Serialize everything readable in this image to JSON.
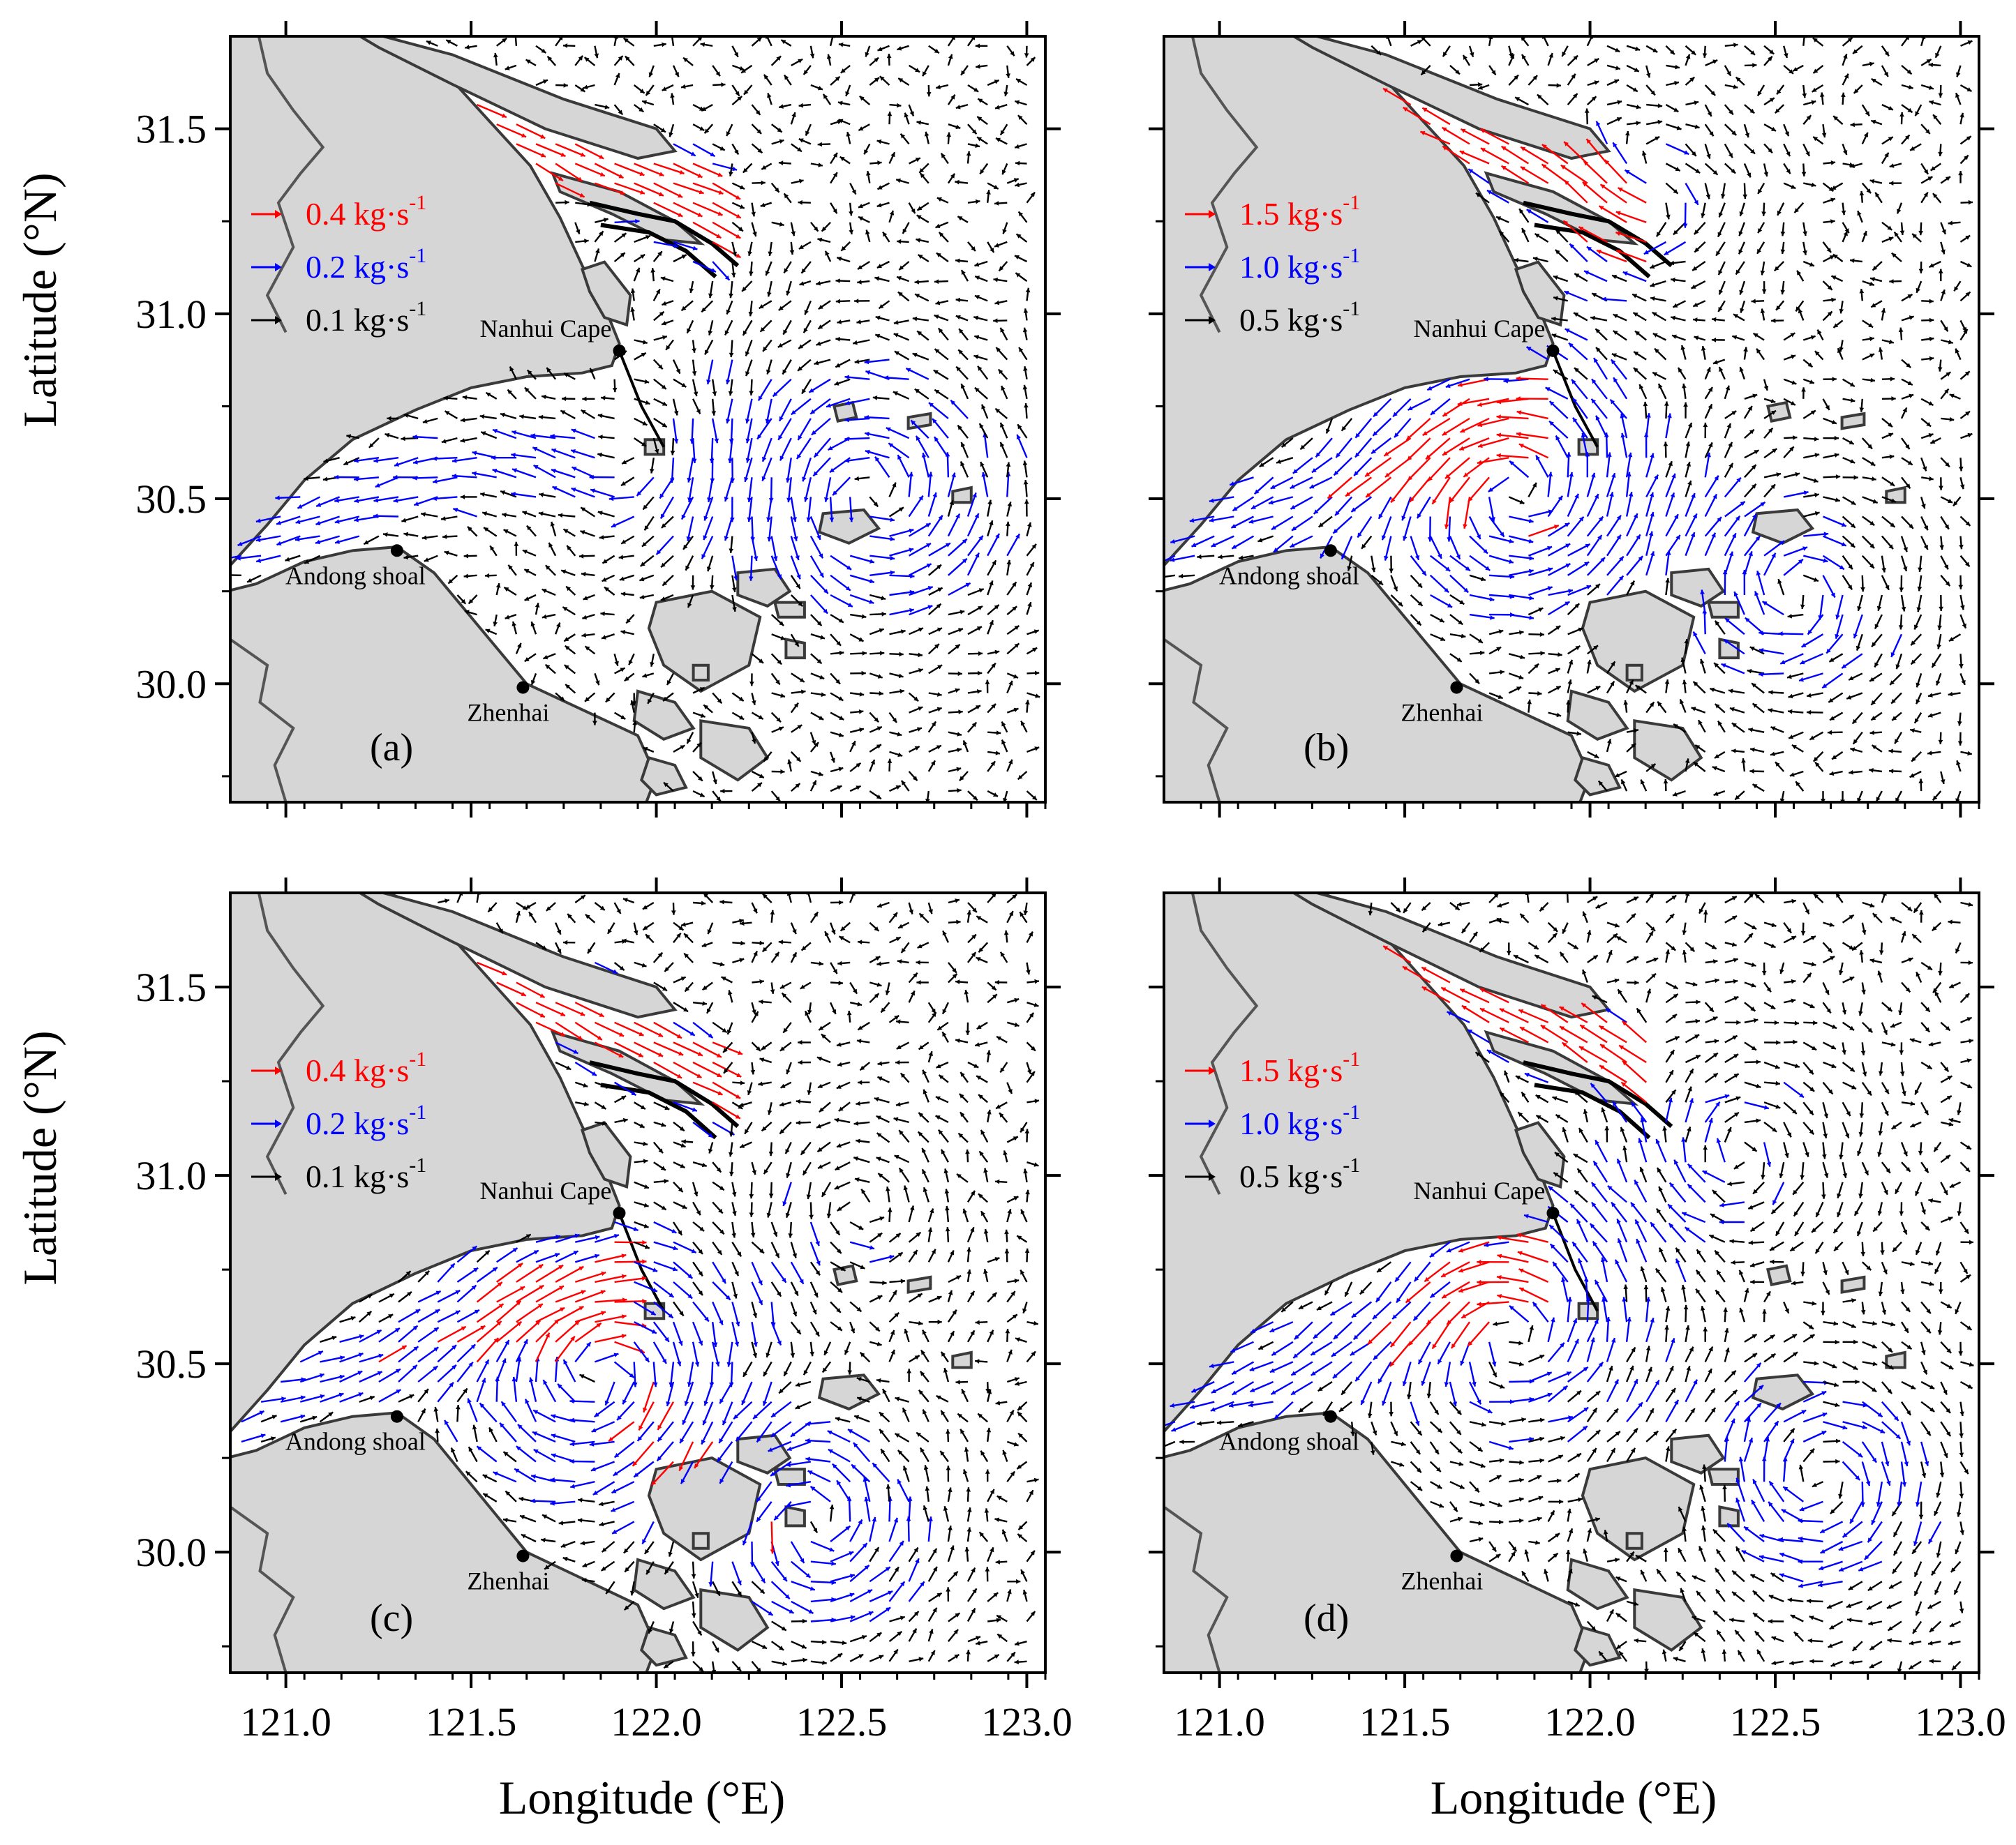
{
  "figure": {
    "x_axis_title": "Longitude (°E)",
    "y_axis_title": "Latitude (°N)",
    "x_ticks": [
      "121.0",
      "121.5",
      "122.0",
      "122.5",
      "123.0"
    ],
    "y_ticks": [
      "31.5",
      "31.0",
      "30.5",
      "30.0"
    ],
    "x_range": [
      120.85,
      123.05
    ],
    "y_range": [
      29.68,
      31.75
    ]
  },
  "colors": {
    "land": "#d6d6d6",
    "coast": "#3a3a3a",
    "large": "#ff0000",
    "medium": "#0000ff",
    "small": "#000000"
  },
  "places": [
    {
      "name": "Nanhui Cape",
      "lon": 121.9,
      "lat": 30.9
    },
    {
      "name": "Andong shoal",
      "lon": 121.3,
      "lat": 30.36
    },
    {
      "name": "Zhenhai",
      "lon": 121.64,
      "lat": 29.99
    }
  ],
  "panels": [
    {
      "label": "(a)",
      "legend": [
        {
          "value": "0.4 kg·s",
          "exp": "-1",
          "color": "large"
        },
        {
          "value": "0.2 kg·s",
          "exp": "-1",
          "color": "medium"
        },
        {
          "value": "0.1 kg·s",
          "exp": "-1",
          "color": "small"
        }
      ]
    },
    {
      "label": "(b)",
      "legend": [
        {
          "value": "1.5 kg·s",
          "exp": "-1",
          "color": "large"
        },
        {
          "value": "1.0 kg·s",
          "exp": "-1",
          "color": "medium"
        },
        {
          "value": "0.5 kg·s",
          "exp": "-1",
          "color": "small"
        }
      ]
    },
    {
      "label": "(c)",
      "legend": [
        {
          "value": "0.4 kg·s",
          "exp": "-1",
          "color": "large"
        },
        {
          "value": "0.2 kg·s",
          "exp": "-1",
          "color": "medium"
        },
        {
          "value": "0.1 kg·s",
          "exp": "-1",
          "color": "small"
        }
      ]
    },
    {
      "label": "(d)",
      "legend": [
        {
          "value": "1.5 kg·s",
          "exp": "-1",
          "color": "large"
        },
        {
          "value": "1.0 kg·s",
          "exp": "-1",
          "color": "medium"
        },
        {
          "value": "0.5 kg·s",
          "exp": "-1",
          "color": "small"
        }
      ]
    }
  ]
}
